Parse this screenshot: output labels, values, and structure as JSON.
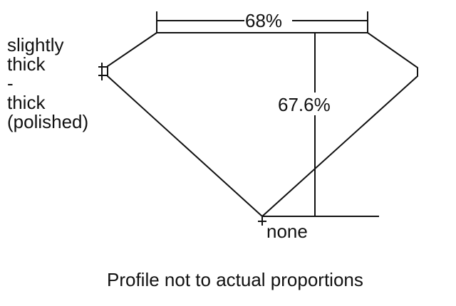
{
  "girdle_label": [
    "slightly",
    "thick",
    "-",
    "thick",
    "(polished)"
  ],
  "table_percent": "68%",
  "depth_percent": "67.6%",
  "culet_label": "none",
  "caption": "Profile not to actual proportions"
}
